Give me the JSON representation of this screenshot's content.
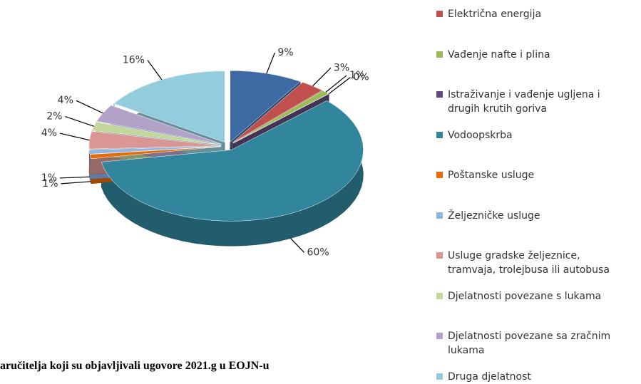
{
  "chart_data": {
    "type": "pie3d",
    "categories": [
      null,
      "Električna energija",
      "Vađenje nafte i plina",
      "Istraživanje i vađenje ugljena i\ndrugih krutih goriva",
      "Vodoopskrba",
      "Poštanske usluge",
      "Željezničke usluge",
      "Usluge gradske željeznice,\ntramvaja, trolejbusa ili autobusa",
      "Djelatnosti povezane s lukama",
      "Djelatnosti povezane sa zračnim\nlukama",
      "Druga djelatnost"
    ],
    "values": [
      9,
      3,
      1,
      0,
      60,
      1,
      1,
      4,
      2,
      4,
      16
    ],
    "value_labels": [
      "9%",
      "3%",
      "1%",
      "0%",
      "60%",
      "1%",
      "1%",
      "4%",
      "2%",
      "4%",
      "16%"
    ],
    "colors": [
      "#3d6aa3",
      "#c0504d",
      "#9bbb59",
      "#604a7b",
      "#31859c",
      "#e46c0a",
      "#8eb4e3",
      "#d99694",
      "#c3d69b",
      "#b3a2c7",
      "#93cddd"
    ],
    "caption": "aručitelja koji su objavljivali ugovore 2021.g u EOJN-u"
  }
}
